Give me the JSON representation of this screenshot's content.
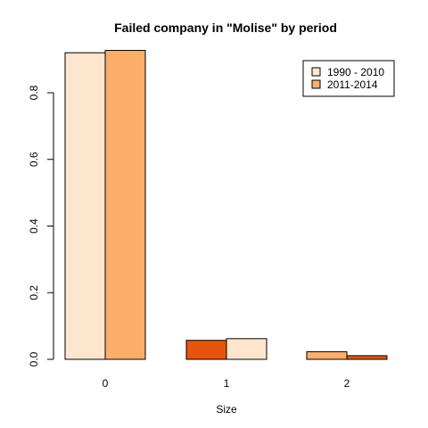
{
  "chart_data": {
    "type": "bar",
    "title": "Failed company in \"Molise\" by period",
    "xlabel": "Size",
    "ylabel": "",
    "ylim": [
      0,
      0.9
    ],
    "yticks": [
      "0.0",
      "0.2",
      "0.4",
      "0.6",
      "0.8"
    ],
    "categories": [
      "0",
      "1",
      "2"
    ],
    "series": [
      {
        "name": "1990 - 2010",
        "values": [
          0.92,
          0.057,
          0.023
        ],
        "colors": [
          "#FEE6CE",
          "#E6550D",
          "#FDAE6B"
        ]
      },
      {
        "name": "2011-2014",
        "values": [
          0.927,
          0.062,
          0.011
        ],
        "colors": [
          "#FDAE6B",
          "#FEE6CE",
          "#E6550D"
        ]
      }
    ],
    "legend": {
      "position": "top-right",
      "entries": [
        {
          "label": "1990 - 2010",
          "color": "#FEE6CE"
        },
        {
          "label": "2011-2014",
          "color": "#FDAE6B"
        }
      ]
    },
    "grid": false
  }
}
